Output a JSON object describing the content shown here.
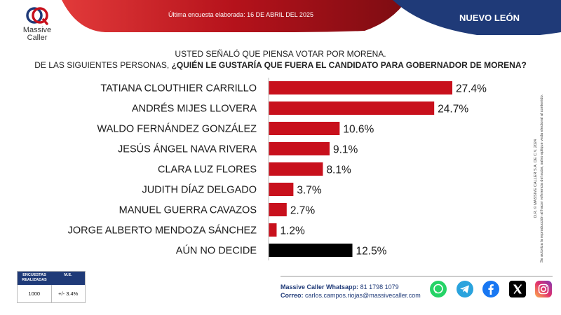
{
  "brand": {
    "name_line1": "Massive",
    "name_line2": "Caller",
    "logo_icon": "massive-caller-logo-icon"
  },
  "header": {
    "date_text": "Última encuesta elaborada: 16 DE ABRIL DEL 2025",
    "region": "NUEVO LEÓN",
    "red": "#b5121b",
    "navy": "#1f3a78"
  },
  "question": {
    "line1": "USTED SEÑALÓ QUE PIENSA VOTAR POR MORENA.",
    "line2_prefix": "DE LAS SIGUIENTES PERSONAS, ",
    "line2_bold": "¿QUIÉN LE GUSTARÍA QUE FUERA EL CANDIDATO PARA GOBERNADOR DE MORENA?"
  },
  "chart_data": {
    "type": "bar",
    "orientation": "horizontal",
    "categories": [
      "TATIANA CLOUTHIER CARRILLO",
      "ANDRÉS MIJES LLOVERA",
      "WALDO FERNÁNDEZ GONZÁLEZ",
      "JESÚS ÁNGEL NAVA RIVERA",
      "CLARA LUZ FLORES",
      "JUDITH DÍAZ DELGADO",
      "MANUEL GUERRA CAVAZOS",
      "JORGE ALBERTO MENDOZA SÁNCHEZ",
      "AÚN NO DECIDE"
    ],
    "values": [
      27.4,
      24.7,
      10.6,
      9.1,
      8.1,
      3.7,
      2.7,
      1.2,
      12.5
    ],
    "value_labels": [
      "27.4%",
      "24.7%",
      "10.6%",
      "9.1%",
      "8.1%",
      "3.7%",
      "2.7%",
      "1.2%",
      "12.5%"
    ],
    "bar_colors": [
      "#c8101c",
      "#c8101c",
      "#c8101c",
      "#c8101c",
      "#c8101c",
      "#c8101c",
      "#c8101c",
      "#c8101c",
      "#000000"
    ],
    "xlim": [
      0,
      30
    ],
    "title": "",
    "xlabel": "",
    "ylabel": ""
  },
  "side_note": {
    "line1": "D.R. © MASSIVE CALLER S.A. DE C.V. 2024",
    "line2": "Se autoriza la reproducción al hacer referencia del autor, salvo aplique veda electoral al contenido."
  },
  "survey_meta": {
    "col1_header": "ENCUESTAS REALIZADAS",
    "col2_header": "M.E.",
    "col1_value": "1000",
    "col2_value": "+/- 3.4%"
  },
  "contact": {
    "whatsapp_label": "Massive Caller Whatsapp:",
    "whatsapp_value": "81 1798 1079",
    "email_label": "Correo:",
    "email_value": "carlos.campos.riojas@massivecaller.com"
  },
  "social": [
    {
      "icon": "whatsapp-icon",
      "color": "#25d366"
    },
    {
      "icon": "telegram-icon",
      "color": "#2aa3dd"
    },
    {
      "icon": "facebook-icon",
      "color": "#1877f2"
    },
    {
      "icon": "x-icon",
      "color": "#000000"
    },
    {
      "icon": "instagram-icon",
      "color": "#d6249f"
    }
  ]
}
